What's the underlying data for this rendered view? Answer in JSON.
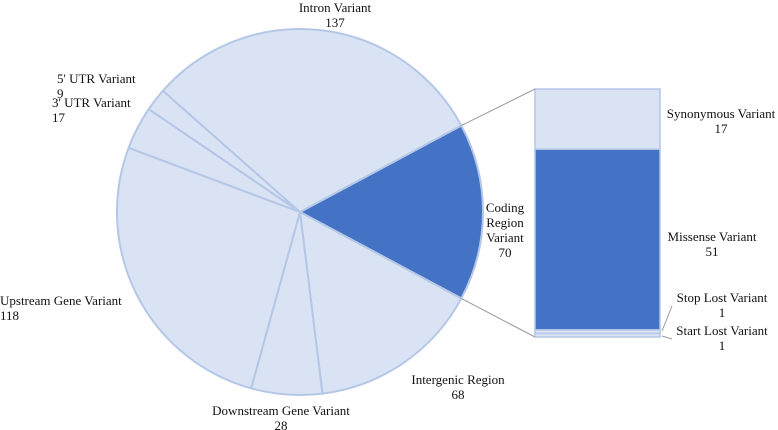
{
  "chart_data": {
    "type": "pie-of-bar",
    "slices": {
      "labels": [
        "Coding Region Variant",
        "Intergenic Region",
        "Downstream Gene Variant",
        "Upstream Gene Variant",
        "3' UTR Variant",
        "5' UTR Variant",
        "Intron Variant"
      ],
      "values": [
        70,
        68,
        28,
        118,
        17,
        9,
        137
      ]
    },
    "breakdown": {
      "labels": [
        "Synonymous Variant",
        "Missense Variant",
        "Stop Lost Variant",
        "Start Lost Variant"
      ],
      "values": [
        17,
        51,
        1,
        1
      ],
      "colors": [
        "#dae3f3",
        "#4472c4",
        "#dae3f3",
        "#dae3f3"
      ]
    },
    "color": "#dae3f3",
    "highlight_color": "#4472c4",
    "edge_color": "#b4c7e7"
  }
}
